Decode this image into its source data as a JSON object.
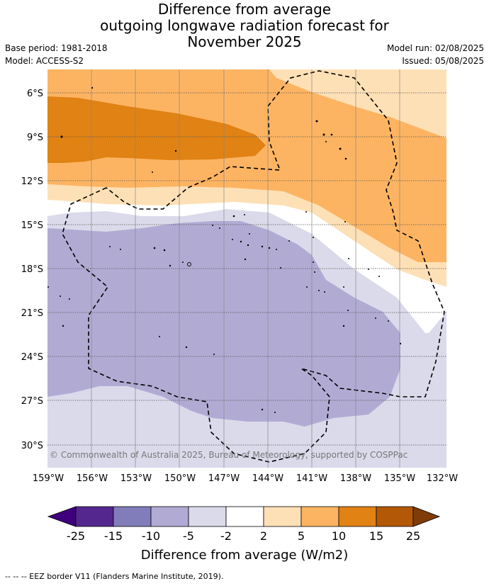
{
  "title": {
    "line1": "Difference from average",
    "line2": "outgoing longwave radiation forecast for",
    "line3": "November 2025"
  },
  "meta": {
    "base_period": "Base period: 1981-2018",
    "model": "Model: ACCESS-S2",
    "model_run": "Model run: 02/08/2025",
    "issued": "Issued: 05/08/2025"
  },
  "map": {
    "lat_labels": [
      "6°S",
      "9°S",
      "12°S",
      "15°S",
      "18°S",
      "21°S",
      "24°S",
      "27°S",
      "30°S"
    ],
    "lon_labels": [
      "159°W",
      "156°W",
      "153°W",
      "150°W",
      "147°W",
      "144°W",
      "141°W",
      "138°W",
      "135°W",
      "132°W"
    ],
    "copyright": "© Commonwealth of Australia 2025, Bureau of Meteorology, supported by COSPPac"
  },
  "colorbar": {
    "ticks": [
      "-25",
      "-15",
      "-10",
      "-5",
      "-2",
      "2",
      "5",
      "10",
      "15",
      "25"
    ],
    "label": "Difference from average (W/m2)",
    "colors": [
      "#3f007d",
      "#54278f",
      "#807dba",
      "#b1abd4",
      "#dadaeb",
      "#ffffff",
      "#fee0b6",
      "#fdb462",
      "#e08214",
      "#b35806",
      "#7f3b08"
    ]
  },
  "footnote": "-- -- -- EEZ border V11 (Flanders Marine Institute, 2019)."
}
